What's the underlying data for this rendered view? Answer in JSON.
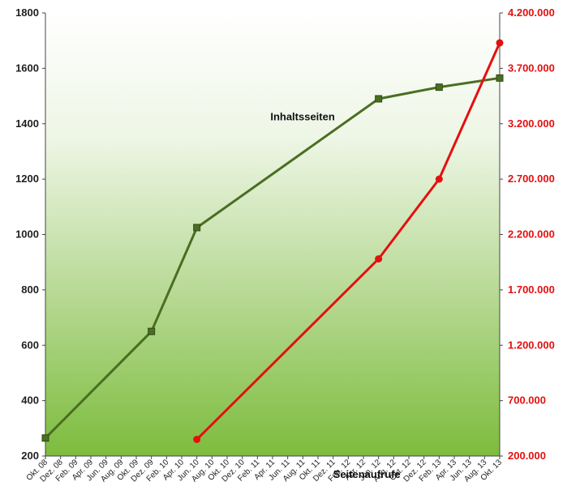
{
  "chart_data": {
    "type": "line",
    "title": "",
    "xlabel": "",
    "ylabel": "",
    "categories": [
      "Okt. 08",
      "Dez. 08",
      "Feb. 09",
      "Apr. 09",
      "Jun. 09",
      "Aug. 09",
      "Okt. 09",
      "Dez. 09",
      "Feb. 10",
      "Apr. 10",
      "Jun. 10",
      "Aug. 10",
      "Okt. 10",
      "Dez. 10",
      "Feb. 11",
      "Apr. 11",
      "Jun. 11",
      "Aug. 11",
      "Okt. 11",
      "Dez. 11",
      "Feb. 12",
      "Apr. 12",
      "Jun. 12",
      "Aug. 12",
      "Okt. 12",
      "Dez. 12",
      "Feb. 13",
      "Apr. 13",
      "Jun. 13",
      "Aug. 13",
      "Okt. 13"
    ],
    "y_left": {
      "range": [
        200,
        1800
      ],
      "ticks": [
        200,
        400,
        600,
        800,
        1000,
        1200,
        1400,
        1600,
        1800
      ],
      "tick_labels": [
        "200",
        "400",
        "600",
        "800",
        "1000",
        "1200",
        "1400",
        "1600",
        "1800"
      ]
    },
    "y_right": {
      "range": [
        200000,
        4200000
      ],
      "ticks": [
        200000,
        700000,
        1200000,
        1700000,
        2200000,
        2700000,
        3200000,
        3700000,
        4200000
      ],
      "tick_labels": [
        "200.000",
        "700.000",
        "1.200.000",
        "1.700.000",
        "2.200.000",
        "2.700.000",
        "3.200.000",
        "3.700.000",
        "4.200.000"
      ]
    },
    "series": [
      {
        "name": "Inhaltsseiten",
        "axis": "left",
        "color": "#4a6e22",
        "marker": "square",
        "points": [
          {
            "x": "Okt. 08",
            "y": 265
          },
          {
            "x": "Dez. 09",
            "y": 650
          },
          {
            "x": "Jun. 10",
            "y": 1025
          },
          {
            "x": "Jun. 12",
            "y": 1490
          },
          {
            "x": "Feb. 13",
            "y": 1532
          },
          {
            "x": "Okt. 13",
            "y": 1565
          }
        ]
      },
      {
        "name": "Seitenaufrufe",
        "axis": "right",
        "color": "#e41010",
        "marker": "circle",
        "points": [
          {
            "x": "Jun. 10",
            "y": 350000
          },
          {
            "x": "Jun. 12",
            "y": 1980000
          },
          {
            "x": "Feb. 13",
            "y": 2700000
          },
          {
            "x": "Okt. 13",
            "y": 3930000
          }
        ]
      }
    ],
    "grid": false,
    "legend": "inline labels",
    "background": {
      "top": "#ffffff",
      "bottom": "#7dbc3d"
    },
    "colors": {
      "left_axis_text": "#1f1f1f",
      "right_axis_text": "#e41010"
    }
  }
}
